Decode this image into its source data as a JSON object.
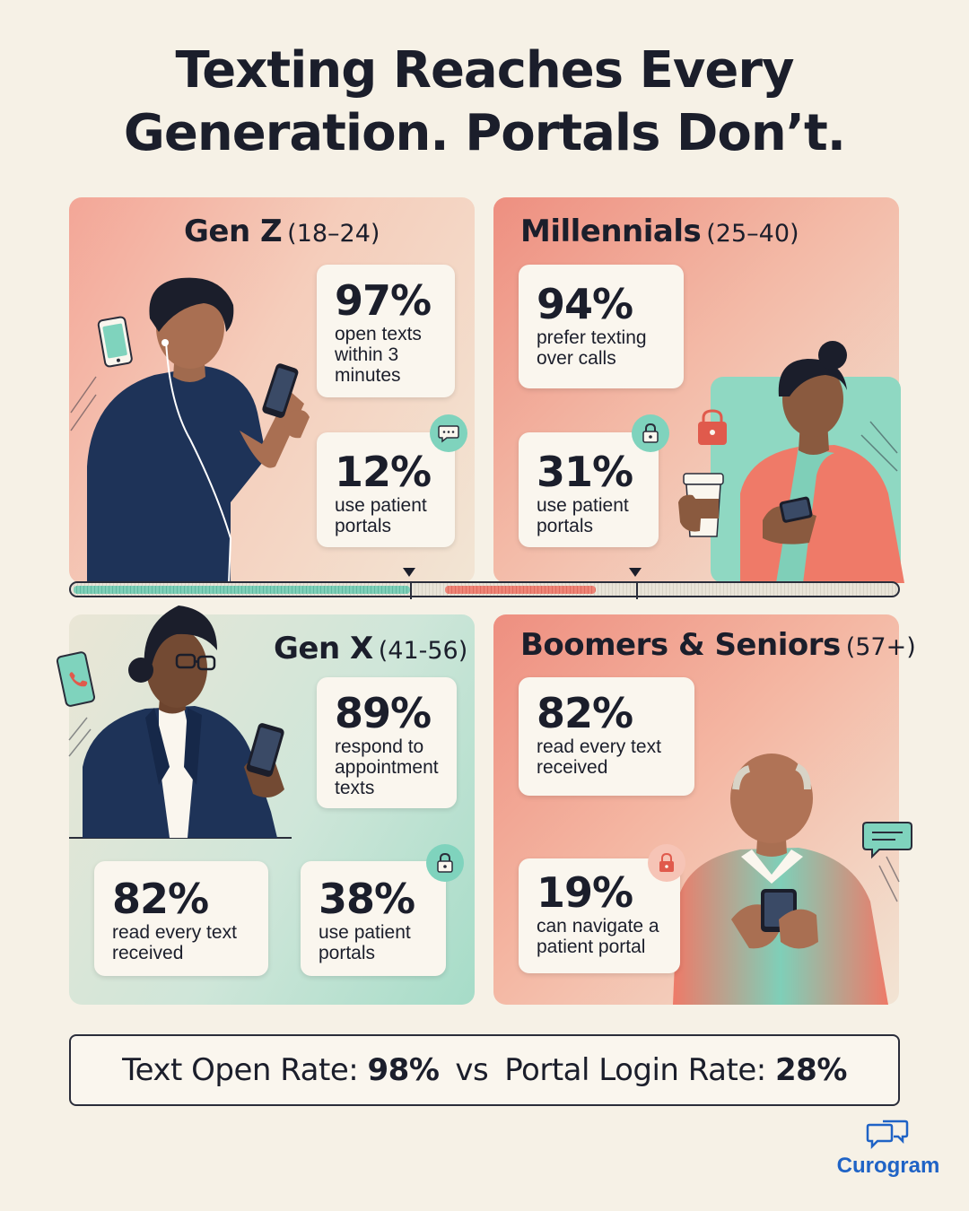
{
  "title": {
    "line1": "Texting Reaches Every",
    "line2": "Generation. Portals Don’t."
  },
  "generations": {
    "genz": {
      "name": "Gen Z",
      "range": "(18–24)",
      "stat1": {
        "value": "97%",
        "label_lines": [
          "open texts",
          "within 3",
          "minutes"
        ]
      },
      "stat2": {
        "value": "12%",
        "label_lines": [
          "use patient",
          "portals"
        ],
        "icon": "chat-bubble-icon"
      }
    },
    "millennials": {
      "name": "Millennials",
      "range": "(25–40)",
      "stat1": {
        "value": "94%",
        "label_lines": [
          "prefer texting",
          "over calls"
        ]
      },
      "stat2": {
        "value": "31%",
        "label_lines": [
          "use patient",
          "portals"
        ],
        "icon": "lock-icon"
      }
    },
    "genx": {
      "name": "Gen X",
      "range": "(41-56)",
      "stat1": {
        "value": "89%",
        "label_lines": [
          "respond to",
          "appointment",
          "texts"
        ]
      },
      "stat2": {
        "value": "82%",
        "label_lines": [
          "read every text",
          "received"
        ]
      },
      "stat3": {
        "value": "38%",
        "label_lines": [
          "use patient",
          "portals"
        ],
        "icon": "lock-icon"
      }
    },
    "boomers": {
      "name": "Boomers & Seniors",
      "range": "(57+)",
      "stat1": {
        "value": "82%",
        "label_lines": [
          "read every text",
          "received"
        ]
      },
      "stat2": {
        "value": "19%",
        "label_lines": [
          "can navigate a",
          "patient portal"
        ],
        "icon": "lock-icon"
      }
    }
  },
  "footer": {
    "text_label": "Text Open Rate:",
    "text_value": "98%",
    "vs": "vs",
    "portal_label": "Portal Login Rate:",
    "portal_value": "28%"
  },
  "brand": {
    "name": "Curogram",
    "icon": "chat-bubbles-icon"
  },
  "colors": {
    "background": "#f6f1e6",
    "coral": "#ee8f80",
    "teal": "#7fd3bd",
    "navy": "#1e3358",
    "brand_blue": "#1f63c6"
  }
}
